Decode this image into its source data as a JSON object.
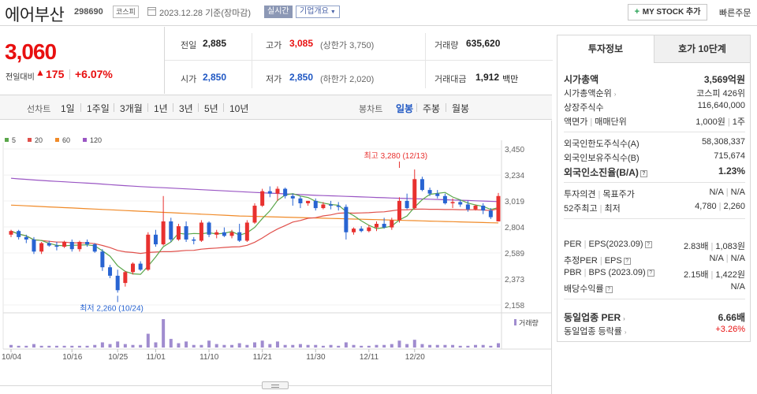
{
  "header": {
    "company_name": "에어부산",
    "code": "298690",
    "market": "코스피",
    "date_text": "2023.12.28 기준(장마감)",
    "realtime_label": "실시간",
    "company_overview_label": "기업개요",
    "mystock_plus": "+",
    "mystock_label": "MY STOCK 추가",
    "quick_order_label": "빠른주문"
  },
  "price": {
    "current": "3,060",
    "change_label": "전일대비",
    "change_arrow": "▲",
    "change_value": "175",
    "change_pct": "+6.07%"
  },
  "quote": {
    "prev_close_label": "전일",
    "prev_close": "2,885",
    "high_label": "고가",
    "high": "3,085",
    "upper_limit": "(상한가 3,750)",
    "volume_label": "거래량",
    "volume": "635,620",
    "open_label": "시가",
    "open": "2,850",
    "low_label": "저가",
    "low": "2,850",
    "lower_limit": "(하한가 2,020)",
    "trade_value_label": "거래대금",
    "trade_value": "1,912",
    "trade_value_unit": "백만"
  },
  "period_bar": {
    "line_chart_label": "선차트",
    "line_periods": [
      "1일",
      "1주일",
      "3개월",
      "1년",
      "3년",
      "5년",
      "10년"
    ],
    "candle_chart_label": "봉차트",
    "candle_periods": [
      "일봉",
      "주봉",
      "월봉"
    ],
    "active_candle_period": "일봉"
  },
  "chart_data": {
    "type": "candlestick",
    "moving_averages": [
      {
        "name": "5",
        "color": "#5aa64a"
      },
      {
        "name": "20",
        "color": "#e0504b"
      },
      {
        "name": "60",
        "color": "#f08a28"
      },
      {
        "name": "120",
        "color": "#9a56c4"
      }
    ],
    "y_ticks": [
      "3,450",
      "3,234",
      "3,019",
      "2,804",
      "2,589",
      "2,373",
      "2,158"
    ],
    "y_range": [
      2158,
      3450
    ],
    "x_ticks": [
      "10/04",
      "10/16",
      "10/25",
      "11/01",
      "11/10",
      "11/21",
      "11/30",
      "12/11",
      "12/20"
    ],
    "annotations": {
      "high": {
        "label": "최고 3,280 (12/13)",
        "value": 3280,
        "index": 51
      },
      "low": {
        "label": "최저 2,260 (10/24)",
        "value": 2260,
        "index": 14
      }
    },
    "volume_legend": "거래량",
    "candles": [
      [
        2740,
        2780,
        2720,
        2770
      ],
      [
        2770,
        2780,
        2700,
        2720
      ],
      [
        2720,
        2740,
        2670,
        2700
      ],
      [
        2700,
        2720,
        2580,
        2600
      ],
      [
        2600,
        2680,
        2580,
        2670
      ],
      [
        2670,
        2690,
        2640,
        2650
      ],
      [
        2650,
        2680,
        2610,
        2640
      ],
      [
        2640,
        2690,
        2630,
        2680
      ],
      [
        2680,
        2700,
        2600,
        2620
      ],
      [
        2620,
        2690,
        2600,
        2680
      ],
      [
        2680,
        2700,
        2640,
        2660
      ],
      [
        2660,
        2670,
        2590,
        2600
      ],
      [
        2600,
        2620,
        2440,
        2470
      ],
      [
        2470,
        2490,
        2380,
        2400
      ],
      [
        2400,
        2450,
        2260,
        2280
      ],
      [
        2340,
        2440,
        2310,
        2430
      ],
      [
        2430,
        2510,
        2410,
        2500
      ],
      [
        2500,
        2520,
        2440,
        2450
      ],
      [
        2450,
        2760,
        2440,
        2740
      ],
      [
        2740,
        2780,
        2640,
        2660
      ],
      [
        2660,
        3060,
        2650,
        2850
      ],
      [
        2850,
        2880,
        2680,
        2700
      ],
      [
        2700,
        2830,
        2690,
        2810
      ],
      [
        2810,
        2850,
        2680,
        2700
      ],
      [
        2700,
        2720,
        2660,
        2690
      ],
      [
        2690,
        2860,
        2680,
        2840
      ],
      [
        2840,
        2850,
        2720,
        2740
      ],
      [
        2740,
        2780,
        2710,
        2760
      ],
      [
        2760,
        2800,
        2720,
        2730
      ],
      [
        2730,
        2780,
        2710,
        2760
      ],
      [
        2760,
        2830,
        2680,
        2690
      ],
      [
        2690,
        2860,
        2680,
        2840
      ],
      [
        2840,
        3000,
        2830,
        2980
      ],
      [
        2980,
        3120,
        2970,
        3100
      ],
      [
        3100,
        3140,
        3050,
        3080
      ],
      [
        3080,
        3140,
        3020,
        3120
      ],
      [
        3120,
        3130,
        3040,
        3060
      ],
      [
        3060,
        3080,
        2980,
        3040
      ],
      [
        3040,
        3060,
        2960,
        3000
      ],
      [
        3000,
        3020,
        2980,
        3020
      ],
      [
        3020,
        3040,
        2940,
        2960
      ],
      [
        2960,
        3010,
        2950,
        2990
      ],
      [
        2990,
        3020,
        2950,
        2980
      ],
      [
        2980,
        3010,
        2940,
        2970
      ],
      [
        2970,
        2990,
        2700,
        2760
      ],
      [
        2760,
        2800,
        2740,
        2790
      ],
      [
        2790,
        2810,
        2760,
        2770
      ],
      [
        2770,
        2820,
        2760,
        2800
      ],
      [
        2800,
        2850,
        2770,
        2830
      ],
      [
        2830,
        2880,
        2790,
        2800
      ],
      [
        2800,
        2880,
        2780,
        2860
      ],
      [
        2860,
        3050,
        2840,
        3020
      ],
      [
        3020,
        3080,
        2950,
        2960
      ],
      [
        2960,
        3280,
        2950,
        3200
      ],
      [
        3200,
        3220,
        3100,
        3110
      ],
      [
        3110,
        3130,
        3060,
        3080
      ],
      [
        3080,
        3110,
        3040,
        3060
      ],
      [
        3060,
        3080,
        2990,
        3000
      ],
      [
        3000,
        3040,
        2960,
        3010
      ],
      [
        3010,
        3030,
        2970,
        2990
      ],
      [
        2990,
        3020,
        2930,
        2950
      ],
      [
        2950,
        2990,
        2940,
        2980
      ],
      [
        2980,
        3000,
        2910,
        2940
      ],
      [
        2940,
        2960,
        2870,
        2885
      ],
      [
        2850,
        3085,
        2850,
        3060
      ]
    ],
    "volumes": [
      3,
      2,
      2,
      4,
      2,
      2,
      2,
      2,
      2,
      2,
      2,
      3,
      6,
      4,
      7,
      4,
      3,
      3,
      16,
      6,
      33,
      10,
      5,
      7,
      3,
      3,
      8,
      4,
      3,
      3,
      5,
      3,
      6,
      8,
      4,
      7,
      3,
      3,
      4,
      3,
      3,
      2,
      3,
      2,
      6,
      3,
      2,
      2,
      3,
      3,
      4,
      8,
      4,
      9,
      4,
      3,
      3,
      3,
      3,
      2,
      2,
      3,
      3,
      2,
      5
    ]
  },
  "right_panel": {
    "tabs": [
      "투자정보",
      "호가 10단계"
    ],
    "market_cap_label": "시가총액",
    "market_cap": "3,569억원",
    "market_cap_rank_label": "시가총액순위",
    "market_cap_rank": "코스피 426위",
    "listed_shares_label": "상장주식수",
    "listed_shares": "116,640,000",
    "par_value_label": "액면가",
    "trade_unit_label": "매매단위",
    "par_value": "1,000원",
    "trade_unit": "1주",
    "foreign_limit_label": "외국인한도주식수(A)",
    "foreign_limit": "58,308,337",
    "foreign_held_label": "외국인보유주식수(B)",
    "foreign_held": "715,674",
    "foreign_ratio_label": "외국인소진율(B/A)",
    "foreign_ratio": "1.23%",
    "opinion_label": "투자의견",
    "target_label": "목표주가",
    "opinion": "N/A",
    "target": "N/A",
    "week52_label_high": "52주최고",
    "week52_label_low": "최저",
    "week52_high": "4,780",
    "week52_low": "2,260",
    "per_label": "PER",
    "eps_label": "EPS(2023.09)",
    "per": "2.83배",
    "eps": "1,083원",
    "est_per_label": "추정PER",
    "est_eps_label": "EPS",
    "est_per": "N/A",
    "est_eps": "N/A",
    "pbr_label": "PBR",
    "bps_label": "BPS (2023.09)",
    "pbr": "2.15배",
    "bps": "1,422원",
    "dividend_label": "배당수익률",
    "dividend": "N/A",
    "sector_per_label": "동일업종 PER",
    "sector_per": "6.66배",
    "sector_change_label": "동일업종 등락률",
    "sector_change": "+3.26%"
  }
}
